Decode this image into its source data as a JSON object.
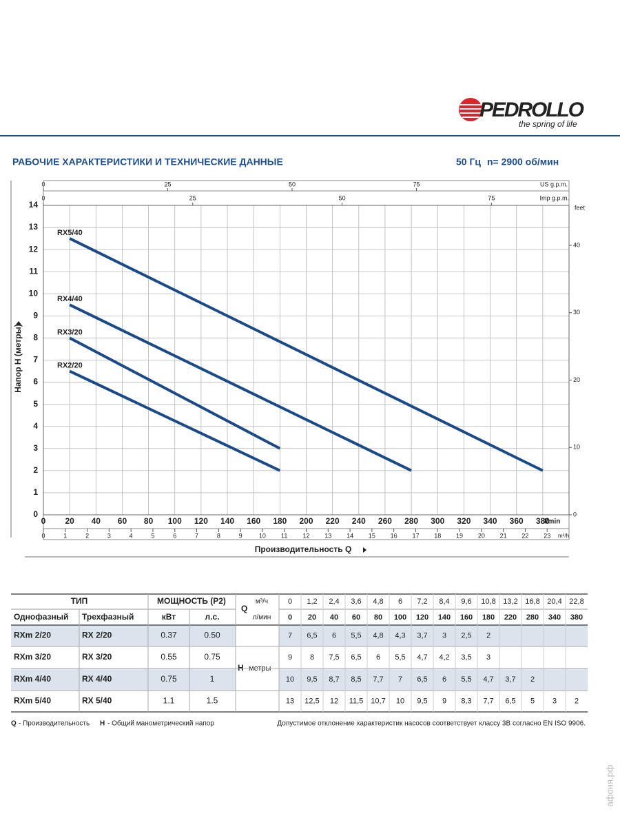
{
  "header": {
    "brand": "PEDROLLO",
    "slogan": "the spring of life",
    "title": "РАБОЧИЕ ХАРАКТЕРИСТИКИ И ТЕХНИЧЕСКИЕ ДАННЫЕ",
    "frequency": "50 Гц",
    "speed": "n= 2900 об/мин"
  },
  "chart_data": {
    "type": "line",
    "ylabel": "Напор H (метры)",
    "xlabel": "Производительность Q",
    "x_unit": "l/min",
    "grid": true,
    "xlim": [
      0,
      400
    ],
    "xticks": [
      0,
      20,
      40,
      60,
      80,
      100,
      120,
      140,
      160,
      180,
      200,
      220,
      240,
      260,
      280,
      300,
      320,
      340,
      360,
      380
    ],
    "ylim": [
      0,
      14
    ],
    "yticks": [
      0,
      1,
      2,
      3,
      4,
      5,
      6,
      7,
      8,
      9,
      10,
      11,
      12,
      13,
      14
    ],
    "m3h_unit": "m³/h",
    "m3h_lim": [
      0,
      24
    ],
    "m3h_ticks": [
      0,
      1,
      2,
      3,
      4,
      5,
      6,
      7,
      8,
      9,
      10,
      11,
      12,
      13,
      14,
      15,
      16,
      17,
      18,
      19,
      20,
      21,
      22,
      23
    ],
    "usgpm_unit": "US g.p.m.",
    "usgpm_lim": [
      0,
      105.68
    ],
    "usgpm_ticks": [
      0,
      25,
      50,
      75
    ],
    "impgpm_unit": "Imp g.p.m.",
    "impgpm_lim": [
      0,
      87.99
    ],
    "impgpm_ticks": [
      0,
      25,
      50,
      75
    ],
    "y2_unit": "feet",
    "y2lim": [
      0,
      45.93
    ],
    "y2ticks": [
      0,
      10,
      20,
      30,
      40
    ],
    "series": [
      {
        "name": "RX5/40",
        "color": "#1b4a8a",
        "x": [
          20,
          380
        ],
        "values": [
          12.5,
          2
        ]
      },
      {
        "name": "RX4/40",
        "color": "#1b4a8a",
        "x": [
          20,
          280
        ],
        "values": [
          9.5,
          2
        ]
      },
      {
        "name": "RX3/20",
        "color": "#1b4a8a",
        "x": [
          20,
          180
        ],
        "values": [
          8,
          3
        ]
      },
      {
        "name": "RX2/20",
        "color": "#1b4a8a",
        "x": [
          20,
          180
        ],
        "values": [
          6.5,
          2
        ]
      }
    ]
  },
  "table": {
    "head": {
      "type": "ТИП",
      "power": "МОЩНОСТЬ (P2)",
      "q": "Q",
      "m3h": "м³/ч",
      "lmin": "л/мин",
      "single": "Однофазный",
      "three": "Трехфазный",
      "kw": "кВт",
      "hp": "л.с.",
      "h": "H",
      "h_unit": "метры"
    },
    "q_m3h": [
      "0",
      "1,2",
      "2,4",
      "3,6",
      "4,8",
      "6",
      "7,2",
      "8,4",
      "9,6",
      "10,8",
      "13,2",
      "16,8",
      "20,4",
      "22,8"
    ],
    "q_lmin": [
      "0",
      "20",
      "40",
      "60",
      "80",
      "100",
      "120",
      "140",
      "160",
      "180",
      "220",
      "280",
      "340",
      "380"
    ],
    "rows": [
      {
        "single": "RXm 2/20",
        "three": "RX 2/20",
        "kw": "0.37",
        "hp": "0.50",
        "head": [
          "7",
          "6,5",
          "6",
          "5,5",
          "4,8",
          "4,3",
          "3,7",
          "3",
          "2,5",
          "2"
        ]
      },
      {
        "single": "RXm 3/20",
        "three": "RX 3/20",
        "kw": "0.55",
        "hp": "0.75",
        "head": [
          "9",
          "8",
          "7,5",
          "6,5",
          "6",
          "5,5",
          "4,7",
          "4,2",
          "3,5",
          "3"
        ]
      },
      {
        "single": "RXm 4/40",
        "three": "RX 4/40",
        "kw": "0.75",
        "hp": "1",
        "head": [
          "10",
          "9,5",
          "8,7",
          "8,5",
          "7,7",
          "7",
          "6,5",
          "6",
          "5,5",
          "4,7",
          "3,7",
          "2"
        ]
      },
      {
        "single": "RXm 5/40",
        "three": "RX 5/40",
        "kw": "1.1",
        "hp": "1.5",
        "head": [
          "13",
          "12,5",
          "12",
          "11,5",
          "10,7",
          "10",
          "9,5",
          "9",
          "8,3",
          "7,7",
          "6,5",
          "5",
          "3",
          "2"
        ]
      }
    ]
  },
  "footer": {
    "q_key": "Q",
    "q_text": "- Производительность",
    "h_key": "H",
    "h_text": "- Общий манометрический напор",
    "note": "Допустимое отклонение характеристик насосов соответствует классу 3B согласно EN ISO 9906."
  },
  "watermark": "афоня.рф"
}
